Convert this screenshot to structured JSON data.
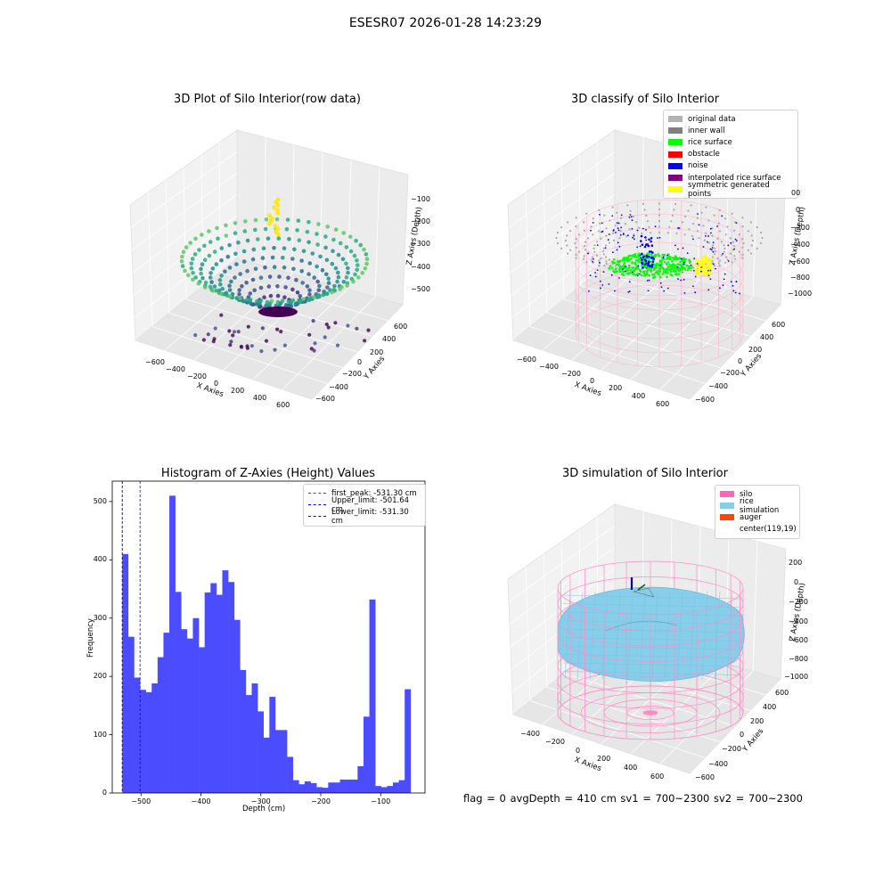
{
  "suptitle": "ESESR07 2026-01-28 14:23:29",
  "footer": "flag = 0     avgDepth = 410 cm  sv1 = 700~2300  sv2 = 700~2300",
  "chart_data": [
    {
      "type": "scatter",
      "title": "3D Plot of Silo Interior(row data)",
      "xlabel": "X Axies",
      "ylabel": "Y Axies",
      "zlabel": "Z Axies (Depth)",
      "x_ticks": [
        "−600",
        "−400",
        "−200",
        "0",
        "200",
        "400",
        "600"
      ],
      "y_ticks": [
        "600",
        "400",
        "200",
        "0",
        "−200",
        "−400",
        "−600"
      ],
      "z_ticks": [
        "−100",
        "−200",
        "−300",
        "−400",
        "−500"
      ],
      "colormap": "viridis"
    },
    {
      "type": "scatter",
      "title": "3D classify of Silo Interior",
      "xlabel": "X Axies",
      "ylabel": "Y Axies",
      "zlabel": "Z Axies (Depth)",
      "x_ticks": [
        "−600",
        "−400",
        "−200",
        "0",
        "200",
        "400",
        "600"
      ],
      "y_ticks": [
        "600",
        "400",
        "200",
        "0",
        "−200",
        "−400",
        "−600"
      ],
      "z_ticks": [
        "0",
        "−200",
        "−400",
        "−600",
        "−800",
        "−1000"
      ],
      "z_ticks_partial": [
        "00",
        "0"
      ],
      "legend": [
        {
          "label": "original data",
          "color": "#b3b3b3"
        },
        {
          "label": "inner wall",
          "color": "#808080"
        },
        {
          "label": "rice surface",
          "color": "#00ff00"
        },
        {
          "label": "obstacle",
          "color": "#ff0000"
        },
        {
          "label": "noise",
          "color": "#0000ff"
        },
        {
          "label": "interpolated rice surface",
          "color": "#800080"
        },
        {
          "label": "symmetric generated points",
          "color": "#ffff00"
        }
      ]
    },
    {
      "type": "bar",
      "title": "Histogram of Z-Axies (Height) Values",
      "xlabel": "Depth (cm)",
      "ylabel": "Frequency",
      "xlim": [
        -548,
        -26
      ],
      "ylim": [
        0,
        535
      ],
      "x_ticks": [
        -500,
        -400,
        -300,
        -200,
        -100
      ],
      "x_tick_labels": [
        "−500",
        "−400",
        "−300",
        "−200",
        "−100"
      ],
      "y_ticks": [
        0,
        100,
        200,
        300,
        400,
        500
      ],
      "bin_start": -531.3,
      "bin_width": 9.82,
      "values": [
        410,
        268,
        198,
        177,
        173,
        188,
        233,
        275,
        510,
        345,
        281,
        265,
        300,
        250,
        344,
        360,
        340,
        382,
        362,
        297,
        211,
        168,
        188,
        140,
        95,
        165,
        108,
        108,
        62,
        22,
        15,
        20,
        17,
        10,
        9,
        18,
        18,
        23,
        23,
        23,
        46,
        131,
        332,
        12,
        10,
        12,
        18,
        22,
        178
      ],
      "bar_color": "#4c4cff",
      "vlines": [
        {
          "label": "first_peak: -531.30 cm",
          "x": -531.3,
          "color": "#ff0000"
        },
        {
          "label": "Upper_limit: -501.64 cm",
          "x": -501.64,
          "color": "#0000ff"
        },
        {
          "label": "Lower_limit: -531.30 cm",
          "x": -531.3,
          "color": "#0000ff"
        }
      ],
      "legend_position": "top-right"
    },
    {
      "type": "area",
      "title": "3D simulation of Silo Interior",
      "xlabel": "X Axies",
      "ylabel": "Y Axies",
      "zlabel": "Z Axies (Depth)",
      "x_ticks": [
        "−400",
        "−200",
        "0",
        "200",
        "400",
        "600"
      ],
      "y_ticks": [
        "600",
        "400",
        "200",
        "0",
        "−200",
        "−400",
        "−600"
      ],
      "z_ticks": [
        "200",
        "0",
        "−200",
        "−400",
        "−600",
        "−800",
        "−1000"
      ],
      "legend": [
        {
          "label": "silo",
          "color": "#ff69b4"
        },
        {
          "label": "rice simulation",
          "color": "#87ceeb"
        },
        {
          "label": "auger",
          "color": "#ff4500"
        },
        {
          "label": "center(119,19)",
          "color": ""
        }
      ]
    }
  ]
}
